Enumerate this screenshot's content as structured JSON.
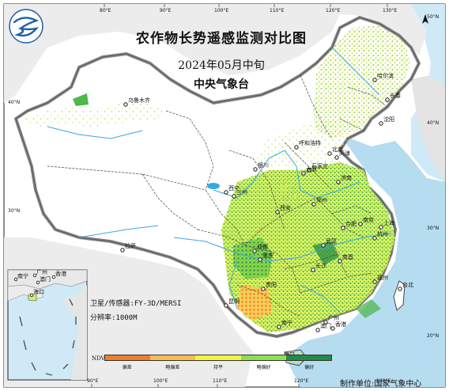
{
  "header": {
    "title": "农作物长势遥感监测对比图",
    "period": "2024年05月中旬",
    "issuer": "中央气象台"
  },
  "meta": {
    "sensor": "卫星/传感器:FY-3D/MERSI",
    "resolution": "分辨率:1000M"
  },
  "credit": "制作单位:国家气象中心",
  "legend": {
    "title": "NDVI",
    "classes": [
      {
        "label": "偏差",
        "color": "#f07e28"
      },
      {
        "label": "略偏差",
        "color": "#fbbd4c"
      },
      {
        "label": "持平",
        "color": "#f2f542"
      },
      {
        "label": "略偏好",
        "color": "#8fe04a"
      },
      {
        "label": "偏好",
        "color": "#238b45"
      }
    ]
  },
  "graticule": {
    "longitudes": [
      "80°E",
      "90°E",
      "100°E",
      "110°E",
      "120°E",
      "130°E"
    ],
    "longitudes_bottom": [
      "90°E",
      "100°E",
      "110°E",
      "120°E",
      "130°E"
    ],
    "latitudes_left": [
      "40°N",
      "30°N",
      "20°N"
    ],
    "latitudes_right": [
      "50°N",
      "40°N",
      "30°N",
      "20°N"
    ]
  },
  "cities": [
    {
      "name": "乌鲁木齐"
    },
    {
      "name": "哈尔滨"
    },
    {
      "name": "长春"
    },
    {
      "name": "沈阳"
    },
    {
      "name": "呼和浩特"
    },
    {
      "name": "北京"
    },
    {
      "name": "天津"
    },
    {
      "name": "石家庄"
    },
    {
      "name": "太原"
    },
    {
      "name": "银川"
    },
    {
      "name": "济南"
    },
    {
      "name": "西宁"
    },
    {
      "name": "兰州"
    },
    {
      "name": "郑州"
    },
    {
      "name": "西安"
    },
    {
      "name": "南京"
    },
    {
      "name": "合肥"
    },
    {
      "name": "上海"
    },
    {
      "name": "杭州"
    },
    {
      "name": "拉萨"
    },
    {
      "name": "成都"
    },
    {
      "name": "武汉"
    },
    {
      "name": "重庆"
    },
    {
      "name": "长沙"
    },
    {
      "name": "南昌"
    },
    {
      "name": "福州"
    },
    {
      "name": "台北"
    },
    {
      "name": "贵阳"
    },
    {
      "name": "昆明"
    },
    {
      "name": "南宁"
    },
    {
      "name": "广州"
    },
    {
      "name": "香港"
    },
    {
      "name": "澳门"
    },
    {
      "name": "海口"
    }
  ],
  "inset_cities": [
    {
      "name": "南宁"
    },
    {
      "name": "广州"
    },
    {
      "name": "澳门"
    },
    {
      "name": "香港"
    },
    {
      "name": "海口"
    }
  ],
  "colors": {
    "sea": "#b6dcf0",
    "land": "#ffffff",
    "neighbor_land": "#ececec",
    "river": "#38a8e0",
    "border": "#888888",
    "province": "#444444"
  },
  "icons": [
    "cma-logo-icon",
    "compass-icon"
  ]
}
